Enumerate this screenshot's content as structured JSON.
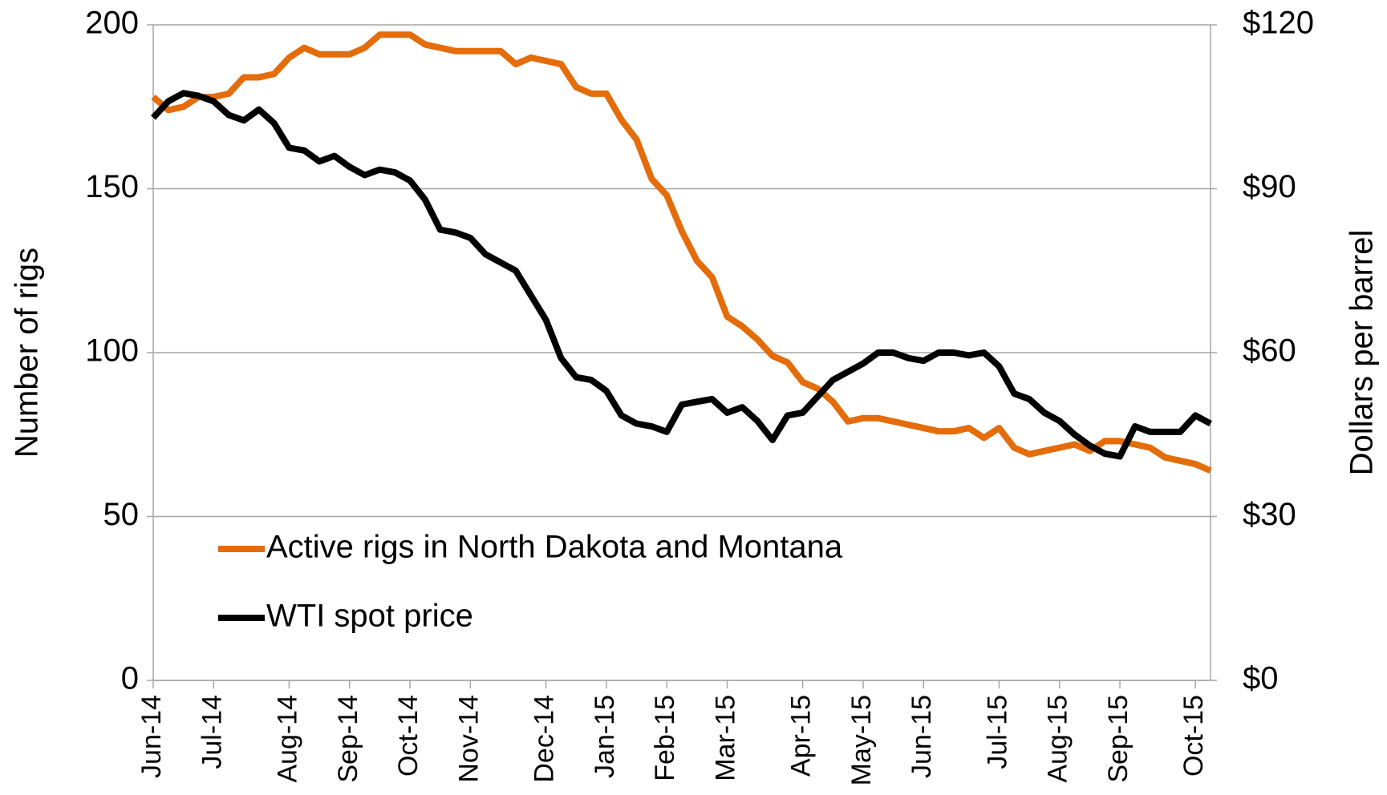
{
  "chart_data": {
    "type": "line",
    "categories": [
      "Jun-14",
      null,
      null,
      null,
      "Jul-14",
      null,
      null,
      null,
      null,
      "Aug-14",
      null,
      null,
      null,
      "Sep-14",
      null,
      null,
      null,
      "Oct-14",
      null,
      null,
      null,
      "Nov-14",
      null,
      null,
      null,
      null,
      "Dec-14",
      null,
      null,
      null,
      "Jan-15",
      null,
      null,
      null,
      "Feb-15",
      null,
      null,
      null,
      "Mar-15",
      null,
      null,
      null,
      null,
      "Apr-15",
      null,
      null,
      null,
      "May-15",
      null,
      null,
      null,
      "Jun-15",
      null,
      null,
      null,
      null,
      "Jul-15",
      null,
      null,
      null,
      "Aug-15",
      null,
      null,
      null,
      "Sep-15",
      null,
      null,
      null,
      null,
      "Oct-15",
      null
    ],
    "series": [
      {
        "name": "Active rigs in North Dakota and Montana",
        "color": "#e46c0a",
        "axis": "y",
        "values": [
          178,
          174,
          175,
          178,
          178,
          179,
          184,
          184,
          185,
          190,
          193,
          191,
          191,
          191,
          193,
          197,
          197,
          197,
          194,
          193,
          192,
          192,
          192,
          192,
          188,
          190,
          189,
          188,
          181,
          179,
          179,
          171,
          165,
          153,
          148,
          137,
          128,
          123,
          111,
          108,
          104,
          99,
          97,
          91,
          89,
          85,
          79,
          80,
          80,
          79,
          78,
          77,
          76,
          76,
          77,
          74,
          77,
          71,
          69,
          70,
          71,
          72,
          70,
          73,
          73,
          72,
          71,
          68,
          67,
          66,
          64
        ]
      },
      {
        "name": "WTI spot price",
        "color": "#000000",
        "axis": "y2",
        "values": [
          103,
          106,
          107.5,
          107,
          106,
          103.5,
          102.5,
          104.5,
          102,
          97.5,
          97,
          95,
          96,
          94,
          92.5,
          93.5,
          93,
          91.5,
          88,
          82.5,
          82,
          81,
          78,
          76.5,
          75,
          70.5,
          66,
          59,
          55.5,
          55,
          53,
          48.5,
          47,
          46.5,
          45.5,
          50.5,
          51,
          51.5,
          49,
          50,
          47.5,
          44,
          48.5,
          49,
          52,
          55,
          56.5,
          58,
          60,
          60,
          59,
          58.5,
          60,
          60,
          59.5,
          60,
          57.5,
          52.5,
          51.5,
          49,
          47.5,
          45,
          43,
          41.5,
          41,
          46.5,
          45.5,
          45.5,
          45.5,
          48.5,
          47
        ]
      }
    ],
    "ylabel": "Number of rigs",
    "y2label": "Dollars per barrel",
    "ylim": [
      0,
      200
    ],
    "yticks": [
      0,
      50,
      100,
      150,
      200
    ],
    "y2lim": [
      0,
      120
    ],
    "y2ticks": [
      {
        "value": 0,
        "label": "$0"
      },
      {
        "value": 30,
        "label": "$30"
      },
      {
        "value": 60,
        "label": "$60"
      },
      {
        "value": 90,
        "label": "$90"
      },
      {
        "value": 120,
        "label": "$120"
      }
    ],
    "grid": true,
    "legend": "lower left"
  }
}
